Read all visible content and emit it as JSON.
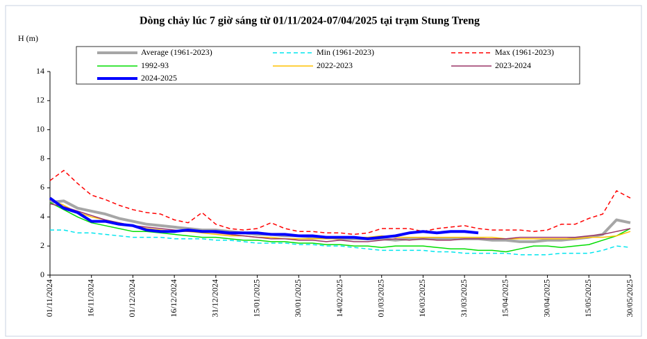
{
  "chart_data": {
    "type": "line",
    "title": "Dòng chảy lúc 7 giờ sáng từ 01/11/2024-07/04/2025 tại trạm Stung Treng",
    "y_label": "H (m)",
    "categories": [
      "01/11/2024",
      null,
      null,
      "16/11/2024",
      null,
      null,
      "01/12/2024",
      null,
      null,
      "16/12/2024",
      null,
      null,
      "31/12/2024",
      null,
      null,
      "15/01/2025",
      null,
      null,
      "30/01/2025",
      null,
      null,
      "14/02/2025",
      null,
      null,
      "01/03/2025",
      null,
      null,
      "16/03/2025",
      null,
      null,
      "31/03/2025",
      null,
      null,
      "15/04/2025",
      null,
      null,
      "30/04/2025",
      null,
      null,
      "15/05/2025",
      null,
      null,
      "30/05/2025"
    ],
    "ylim": [
      0,
      14
    ],
    "yticks": [
      0,
      2,
      4,
      6,
      8,
      10,
      12,
      14
    ],
    "series": [
      {
        "name": "Average (1961-2023)",
        "color": "#a6a6a6",
        "width": 4,
        "dashed": false,
        "values": [
          5.0,
          5.1,
          4.6,
          4.4,
          4.2,
          3.9,
          3.7,
          3.5,
          3.4,
          3.3,
          3.2,
          3.1,
          3.1,
          3.0,
          2.9,
          2.8,
          2.8,
          2.7,
          2.7,
          2.6,
          2.6,
          2.5,
          2.5,
          2.5,
          2.5,
          2.4,
          2.5,
          2.5,
          2.5,
          2.5,
          2.5,
          2.5,
          2.4,
          2.4,
          2.3,
          2.3,
          2.4,
          2.4,
          2.5,
          2.6,
          2.8,
          3.8,
          3.6
        ]
      },
      {
        "name": "Min (1961-2023)",
        "color": "#00e5ee",
        "width": 1.5,
        "dashed": true,
        "values": [
          3.1,
          3.1,
          2.9,
          2.9,
          2.8,
          2.7,
          2.6,
          2.6,
          2.6,
          2.5,
          2.5,
          2.5,
          2.4,
          2.4,
          2.3,
          2.2,
          2.2,
          2.2,
          2.1,
          2.1,
          2.0,
          2.0,
          1.9,
          1.8,
          1.7,
          1.7,
          1.7,
          1.7,
          1.6,
          1.6,
          1.5,
          1.5,
          1.5,
          1.5,
          1.4,
          1.4,
          1.4,
          1.5,
          1.5,
          1.5,
          1.7,
          2.0,
          1.9
        ]
      },
      {
        "name": "Max (1961-2023)",
        "color": "#ff0000",
        "width": 1.5,
        "dashed": true,
        "values": [
          6.5,
          7.2,
          6.3,
          5.5,
          5.2,
          4.8,
          4.5,
          4.3,
          4.2,
          3.8,
          3.6,
          4.3,
          3.5,
          3.2,
          3.1,
          3.2,
          3.6,
          3.2,
          3.0,
          3.0,
          2.9,
          2.9,
          2.8,
          2.9,
          3.2,
          3.2,
          3.2,
          3.0,
          3.2,
          3.3,
          3.4,
          3.2,
          3.1,
          3.1,
          3.1,
          3.0,
          3.1,
          3.5,
          3.5,
          3.9,
          4.2,
          5.8,
          5.3
        ]
      },
      {
        "name": "1992-93",
        "color": "#00dd00",
        "width": 1.5,
        "dashed": false,
        "values": [
          5.0,
          4.5,
          4.0,
          3.6,
          3.4,
          3.2,
          3.0,
          3.0,
          2.9,
          2.8,
          2.7,
          2.6,
          2.6,
          2.5,
          2.4,
          2.4,
          2.3,
          2.3,
          2.2,
          2.2,
          2.1,
          2.1,
          2.0,
          2.0,
          1.9,
          2.0,
          2.0,
          2.0,
          1.9,
          1.8,
          1.8,
          1.7,
          1.7,
          1.6,
          1.8,
          2.0,
          2.0,
          1.9,
          2.0,
          2.1,
          2.4,
          2.7,
          3.2
        ]
      },
      {
        "name": "2022-2023",
        "color": "#ffc000",
        "width": 1.5,
        "dashed": false,
        "values": [
          5.2,
          4.8,
          4.3,
          4.0,
          3.8,
          3.6,
          3.4,
          3.2,
          3.1,
          3.0,
          3.0,
          2.9,
          2.8,
          2.7,
          2.7,
          2.6,
          2.6,
          2.5,
          2.5,
          2.5,
          2.5,
          2.5,
          2.6,
          2.6,
          2.7,
          2.6,
          2.6,
          2.6,
          2.6,
          2.6,
          2.6,
          2.6,
          2.6,
          2.5,
          2.5,
          2.5,
          2.5,
          2.5,
          2.5,
          2.6,
          2.6,
          2.7,
          3.0
        ]
      },
      {
        "name": "2023-2024",
        "color": "#993366",
        "width": 1.5,
        "dashed": false,
        "values": [
          4.9,
          4.7,
          4.4,
          4.1,
          3.8,
          3.6,
          3.4,
          3.3,
          3.2,
          3.1,
          3.0,
          3.0,
          2.9,
          2.8,
          2.7,
          2.6,
          2.5,
          2.5,
          2.4,
          2.4,
          2.3,
          2.4,
          2.3,
          2.3,
          2.4,
          2.5,
          2.4,
          2.5,
          2.4,
          2.4,
          2.5,
          2.5,
          2.5,
          2.5,
          2.6,
          2.6,
          2.6,
          2.6,
          2.6,
          2.7,
          2.8,
          3.0,
          3.2
        ]
      },
      {
        "name": "2024-2025",
        "color": "#0000ff",
        "width": 4,
        "dashed": false,
        "values": [
          5.3,
          4.6,
          4.3,
          3.7,
          3.7,
          3.5,
          3.4,
          3.1,
          3.0,
          3.0,
          3.1,
          3.0,
          3.0,
          2.9,
          2.9,
          2.9,
          2.8,
          2.8,
          2.7,
          2.7,
          2.6,
          2.6,
          2.6,
          2.5,
          2.6,
          2.7,
          2.9,
          3.0,
          2.9,
          3.0,
          3.0,
          2.9,
          null,
          null,
          null,
          null,
          null,
          null,
          null,
          null,
          null,
          null,
          null
        ]
      }
    ]
  }
}
